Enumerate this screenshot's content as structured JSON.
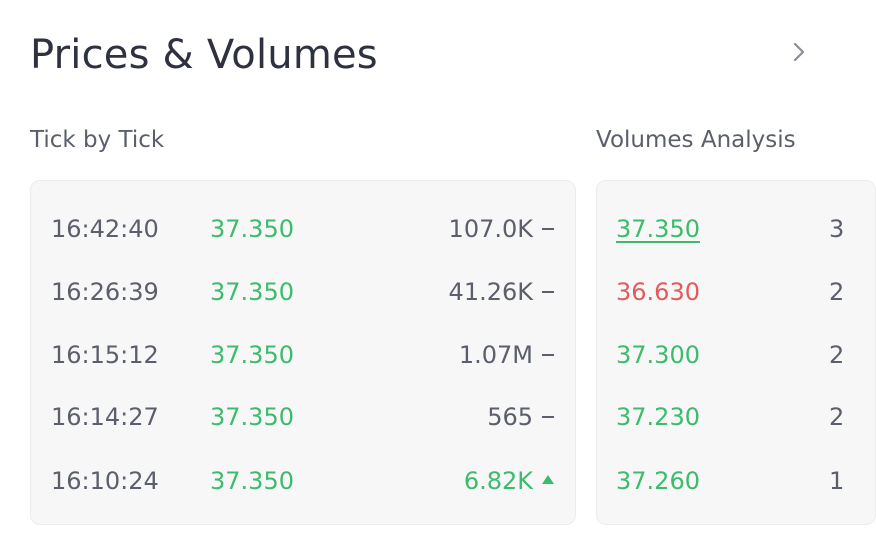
{
  "header": {
    "title": "Prices & Volumes",
    "chevron_icon": "chevron-right-icon"
  },
  "tick_by_tick": {
    "label": "Tick by Tick",
    "rows": [
      {
        "time": "16:42:40",
        "price": "37.350",
        "volume": "107.0K",
        "direction": "neutral"
      },
      {
        "time": "16:26:39",
        "price": "37.350",
        "volume": "41.26K",
        "direction": "neutral"
      },
      {
        "time": "16:15:12",
        "price": "37.350",
        "volume": "1.07M",
        "direction": "neutral"
      },
      {
        "time": "16:14:27",
        "price": "37.350",
        "volume": "565",
        "direction": "neutral"
      },
      {
        "time": "16:10:24",
        "price": "37.350",
        "volume": "6.82K",
        "direction": "up"
      }
    ]
  },
  "volumes_analysis": {
    "label": "Volumes Analysis",
    "rows": [
      {
        "price": "37.350",
        "color": "green",
        "count_partial": "3"
      },
      {
        "price": "36.630",
        "color": "red",
        "count_partial": "2"
      },
      {
        "price": "37.300",
        "color": "green",
        "count_partial": "2"
      },
      {
        "price": "37.230",
        "color": "green",
        "count_partial": "2"
      },
      {
        "price": "37.260",
        "color": "green",
        "count_partial": "1"
      }
    ]
  },
  "colors": {
    "up": "#3dbb6c",
    "down": "#e15b5b",
    "text": "#2e3240",
    "muted": "#5a5f6b",
    "card_bg": "#f7f7f8"
  }
}
